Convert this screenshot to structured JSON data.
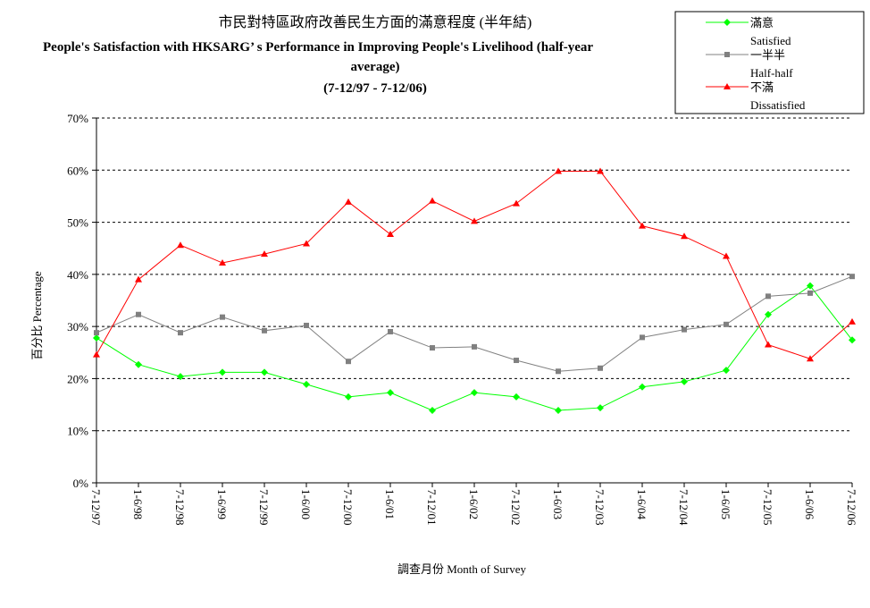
{
  "chart_data": {
    "type": "line",
    "title": "市民對特區政府改善民生方面的滿意程度 (半年結)",
    "subtitle": "People's Satisfaction with HKSARG’ s Performance in Improving People's Livelihood (half-year",
    "subtitle2": "average)",
    "date_range": "(7-12/97 - 7-12/06)",
    "xlabel": "調查月份 Month of Survey",
    "ylabel": "百分比 Percentage",
    "ylim": [
      0,
      70
    ],
    "yticks": [
      "0%",
      "10%",
      "20%",
      "30%",
      "40%",
      "50%",
      "60%",
      "70%"
    ],
    "grid": "horizontal dashed",
    "legend_position": "top-right",
    "categories": [
      "7-12/97",
      "1-6/98",
      "7-12/98",
      "1-6/99",
      "7-12/99",
      "1-6/00",
      "7-12/00",
      "1-6/01",
      "7-12/01",
      "1-6/02",
      "7-12/02",
      "1-6/03",
      "7-12/03",
      "1-6/04",
      "7-12/04",
      "1-6/05",
      "7-12/05",
      "1-6/06",
      "7-12/06"
    ],
    "series": [
      {
        "name": "滿意",
        "name_en": "Satisfied",
        "color": "#00ff00",
        "marker": "diamond",
        "values": [
          27.8,
          22.7,
          20.4,
          21.2,
          21.2,
          18.9,
          16.5,
          17.3,
          13.9,
          17.3,
          16.5,
          13.9,
          14.4,
          18.4,
          19.4,
          21.6,
          32.3,
          37.8,
          27.4
        ]
      },
      {
        "name": "一半半",
        "name_en": "Half-half",
        "color": "#808080",
        "marker": "square",
        "values": [
          28.8,
          32.3,
          28.8,
          31.8,
          29.2,
          30.2,
          23.3,
          29.0,
          25.9,
          26.1,
          23.5,
          21.4,
          22.0,
          27.9,
          29.4,
          30.4,
          35.8,
          36.4,
          39.6
        ]
      },
      {
        "name": "不滿",
        "name_en": "Dissatisfied",
        "color": "#ff0000",
        "marker": "triangle",
        "values": [
          24.6,
          39.0,
          45.6,
          42.2,
          43.9,
          45.9,
          53.9,
          47.7,
          54.1,
          50.2,
          53.6,
          59.8,
          59.8,
          49.3,
          47.3,
          43.5,
          26.5,
          23.8,
          30.9
        ]
      }
    ]
  }
}
